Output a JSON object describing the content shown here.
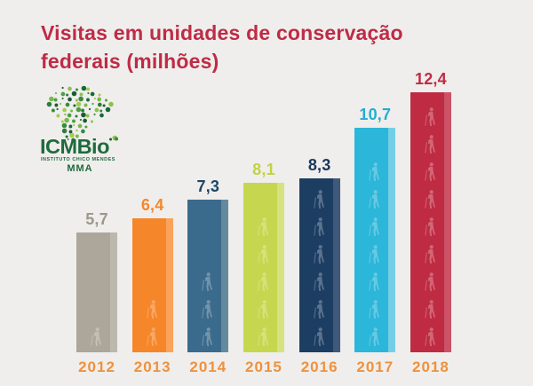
{
  "background_color": "#efeeec",
  "header": {
    "title_line1": "Visitas em unidades de conservação",
    "title_line2": "federais (milhões)",
    "title_color": "#bf2b45"
  },
  "logo": {
    "name": "ICMBio",
    "subtitle": "INSTITUTO CHICO MENDES",
    "org": "MMA",
    "text_color": "#1e6b3c",
    "dot_colors": [
      "#1d5c33",
      "#2f7d3c",
      "#4f9e44",
      "#79b94c",
      "#a6cc4f",
      "#146b3a",
      "#3b8a3f",
      "#8fc24d"
    ]
  },
  "chart_data": {
    "type": "bar",
    "title": "Visitas em unidades de conservação federais (milhões)",
    "categories": [
      "2012",
      "2013",
      "2014",
      "2015",
      "2016",
      "2017",
      "2018"
    ],
    "values": [
      5.7,
      6.4,
      7.3,
      8.1,
      8.3,
      10.7,
      12.4
    ],
    "value_labels": [
      "5,7",
      "6,4",
      "7,3",
      "8,1",
      "8,3",
      "10,7",
      "12,4"
    ],
    "ylim": [
      0,
      13
    ],
    "grid": false,
    "legend": false,
    "xlabel": "",
    "ylabel": "",
    "bar_colors": [
      "#aca69b",
      "#f6862a",
      "#3b6b8c",
      "#c6d74f",
      "#1d3e63",
      "#2cb6d9",
      "#bf2b42"
    ],
    "bar_highlight_colors": [
      "#bdb8ad",
      "#f9a45c",
      "#64899f",
      "#d6e180",
      "#40597b",
      "#74cfe6",
      "#cc5265"
    ],
    "value_label_colors": [
      "#9c978c",
      "#f6872c",
      "#1d4766",
      "#c1d33f",
      "#19375c",
      "#23add2",
      "#bf2b45"
    ],
    "category_label_color": "#ef913d",
    "hiker_icon_counts": [
      1,
      2,
      3,
      5,
      6,
      7,
      9
    ]
  }
}
